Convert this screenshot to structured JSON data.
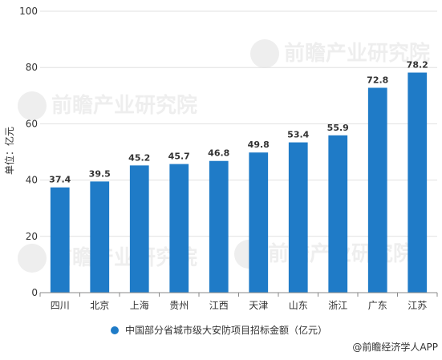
{
  "chart_data": {
    "type": "bar",
    "categories": [
      "四川",
      "北京",
      "上海",
      "贵州",
      "江西",
      "天津",
      "山东",
      "浙江",
      "广东",
      "江苏"
    ],
    "series": [
      {
        "name": "中国部分省城市级大安防项目招标金额（亿元）",
        "values": [
          37.4,
          39.5,
          45.2,
          45.7,
          46.8,
          49.8,
          53.4,
          55.9,
          72.8,
          78.2
        ],
        "value_labels": [
          "37.4",
          "39.5",
          "45.2",
          "45.7",
          "46.8",
          "49.8",
          "53.4",
          "55.9",
          "72.8",
          "78.2"
        ]
      }
    ],
    "ylabel": "单位：亿元",
    "ylim": [
      0,
      100
    ],
    "yticks": [
      0,
      20,
      40,
      60,
      80,
      100
    ],
    "grid": true,
    "legend_position": "bottom",
    "colors": {
      "bar": "#1f7bc7",
      "grid": "#e0e0e0",
      "axis": "#888888",
      "text": "#333333"
    }
  },
  "watermark": "前瞻产业研究院",
  "source": "@前瞻经济学人APP"
}
